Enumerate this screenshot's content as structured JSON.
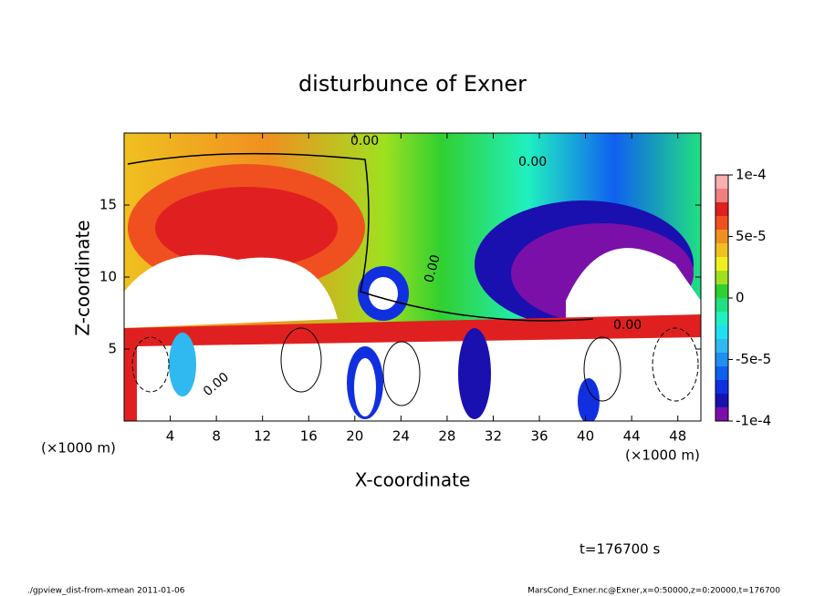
{
  "chart_data": {
    "type": "contour",
    "title": "disturbunce of Exner",
    "x_label": "X-coordinate",
    "y_label": "Z-coordinate",
    "x_unit_labels": [
      "(×1000 m)",
      "(×1000 m)"
    ],
    "xlim": [
      0,
      50
    ],
    "xticks": [
      4,
      8,
      12,
      16,
      20,
      24,
      28,
      32,
      36,
      40,
      44,
      48
    ],
    "ylim": [
      0,
      20
    ],
    "yticks": [
      5,
      10,
      15
    ],
    "contour_labels": [
      "0.00",
      "0.00",
      "0.00",
      "0.00",
      "0.00"
    ],
    "colorbar": {
      "range": [
        -0.0001,
        0.0001
      ],
      "ticks": [
        {
          "value": 0.0001,
          "label": "1e-4"
        },
        {
          "value": 5e-05,
          "label": "5e-5"
        },
        0,
        {
          "value": -5e-05,
          "label": "-5e-5"
        },
        {
          "value": -0.0001,
          "label": "-1e-4"
        }
      ],
      "colors": [
        "#7a10a8",
        "#1a10b0",
        "#1030e0",
        "#1060f0",
        "#2090f0",
        "#30b8f0",
        "#20e0f0",
        "#20f0c0",
        "#20e080",
        "#30d030",
        "#a0e020",
        "#f0f020",
        "#f0c020",
        "#f09020",
        "#f05020",
        "#e02020",
        "#f08080",
        "#f8b0b0"
      ]
    },
    "annotation": "t=176700 s",
    "footer_left": "./gpview_dist-from-xmean  2011-01-06",
    "footer_right": "MarsCond_Exner.nc@Exner,x=0:50000,z=0:20000,t=176700"
  }
}
